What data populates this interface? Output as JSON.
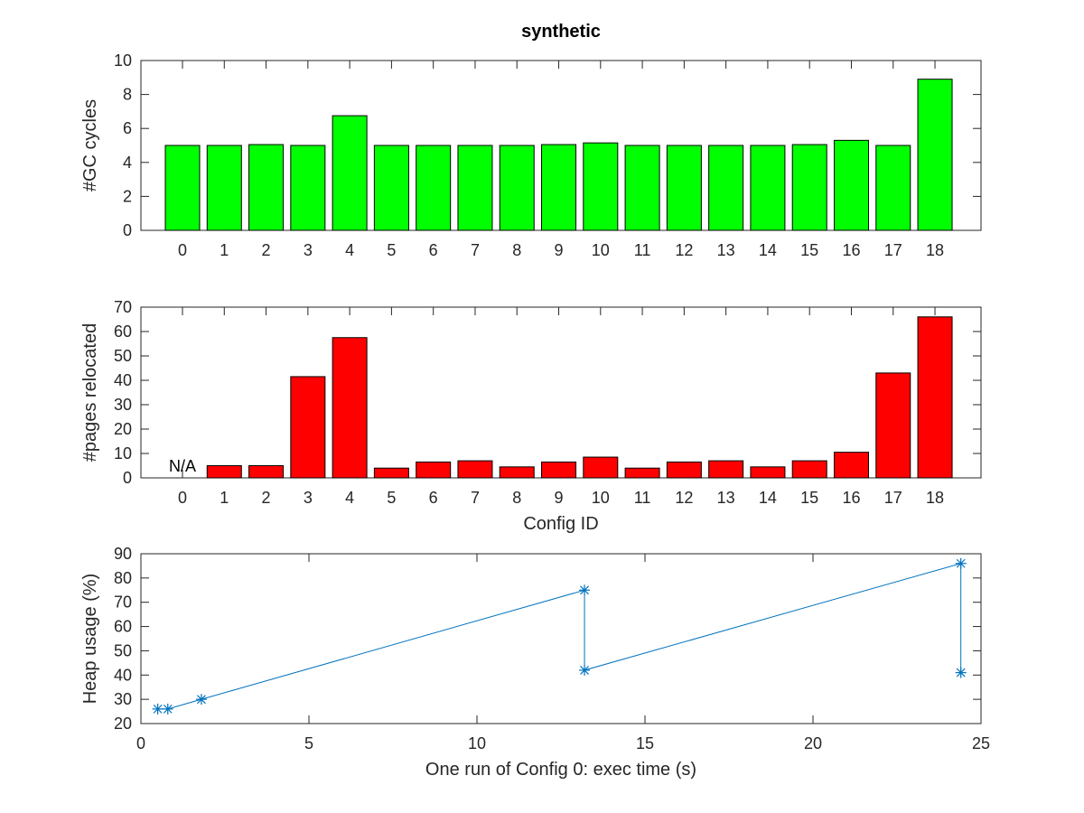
{
  "figure_title": "synthetic",
  "chart_data": [
    {
      "type": "bar",
      "ylabel": "#GC cycles",
      "xlabel": "",
      "categories": [
        "0",
        "1",
        "2",
        "3",
        "4",
        "5",
        "6",
        "7",
        "8",
        "9",
        "10",
        "11",
        "12",
        "13",
        "14",
        "15",
        "16",
        "17",
        "18"
      ],
      "values": [
        5,
        5,
        5.05,
        5,
        6.75,
        5,
        5,
        5,
        5,
        5.05,
        5.15,
        5,
        5,
        5,
        5,
        5.05,
        5.3,
        5,
        8.9
      ],
      "ylim": [
        0,
        10
      ],
      "yticks": [
        0,
        2,
        4,
        6,
        8,
        10
      ],
      "color": "#00ff00"
    },
    {
      "type": "bar",
      "ylabel": "#pages relocated",
      "xlabel": "Config ID",
      "categories": [
        "0",
        "1",
        "2",
        "3",
        "4",
        "5",
        "6",
        "7",
        "8",
        "9",
        "10",
        "11",
        "12",
        "13",
        "14",
        "15",
        "16",
        "17",
        "18"
      ],
      "values": [
        null,
        5,
        5,
        41.5,
        57.5,
        4,
        6.5,
        7,
        4.5,
        6.5,
        8.5,
        4,
        6.5,
        7,
        4.5,
        7,
        10.5,
        43,
        66
      ],
      "ylim": [
        0,
        70
      ],
      "yticks": [
        0,
        10,
        20,
        30,
        40,
        50,
        60,
        70
      ],
      "color": "#ff0000",
      "annotation": {
        "category": "0",
        "text": "N/A"
      }
    },
    {
      "type": "line",
      "ylabel": "Heap usage (%)",
      "xlabel": "One run  of Config 0: exec time (s)",
      "x": [
        0.5,
        0.8,
        1.8,
        13.2,
        13.2,
        24.4,
        24.4
      ],
      "y": [
        26,
        26,
        30,
        75,
        42,
        86,
        41
      ],
      "xlim": [
        0,
        25
      ],
      "ylim": [
        20,
        90
      ],
      "xticks": [
        0,
        5,
        10,
        15,
        20,
        25
      ],
      "yticks": [
        20,
        30,
        40,
        50,
        60,
        70,
        80,
        90
      ],
      "color": "#0072bd",
      "marker": "asterisk"
    }
  ]
}
